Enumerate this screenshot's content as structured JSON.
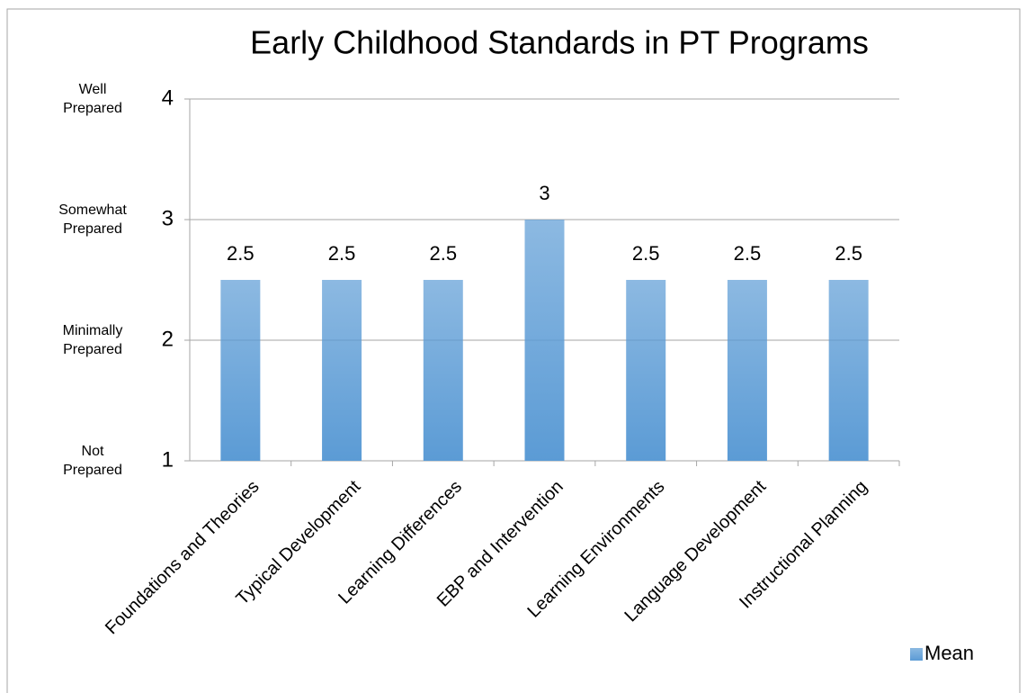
{
  "chart_data": {
    "type": "bar",
    "title": "Early Childhood Standards in PT Programs",
    "categories": [
      "Foundations and Theories",
      "Typical Development",
      "Learning Differences",
      "EBP and Intervention",
      "Learning Environments",
      "Language Development",
      "Instructional Planning"
    ],
    "series": [
      {
        "name": "Mean",
        "color": "#5b9bd5",
        "values": [
          2.5,
          2.5,
          2.5,
          3,
          2.5,
          2.5,
          2.5
        ]
      }
    ],
    "ylim": [
      1,
      4
    ],
    "yticks": [
      1,
      2,
      3,
      4
    ],
    "y_level_labels": [
      [
        "Not",
        "Prepared"
      ],
      [
        "Minimally",
        "Prepared"
      ],
      [
        "Somewhat",
        "Prepared"
      ],
      [
        "Well",
        "Prepared"
      ]
    ],
    "grid": true,
    "legend": "lower right"
  }
}
